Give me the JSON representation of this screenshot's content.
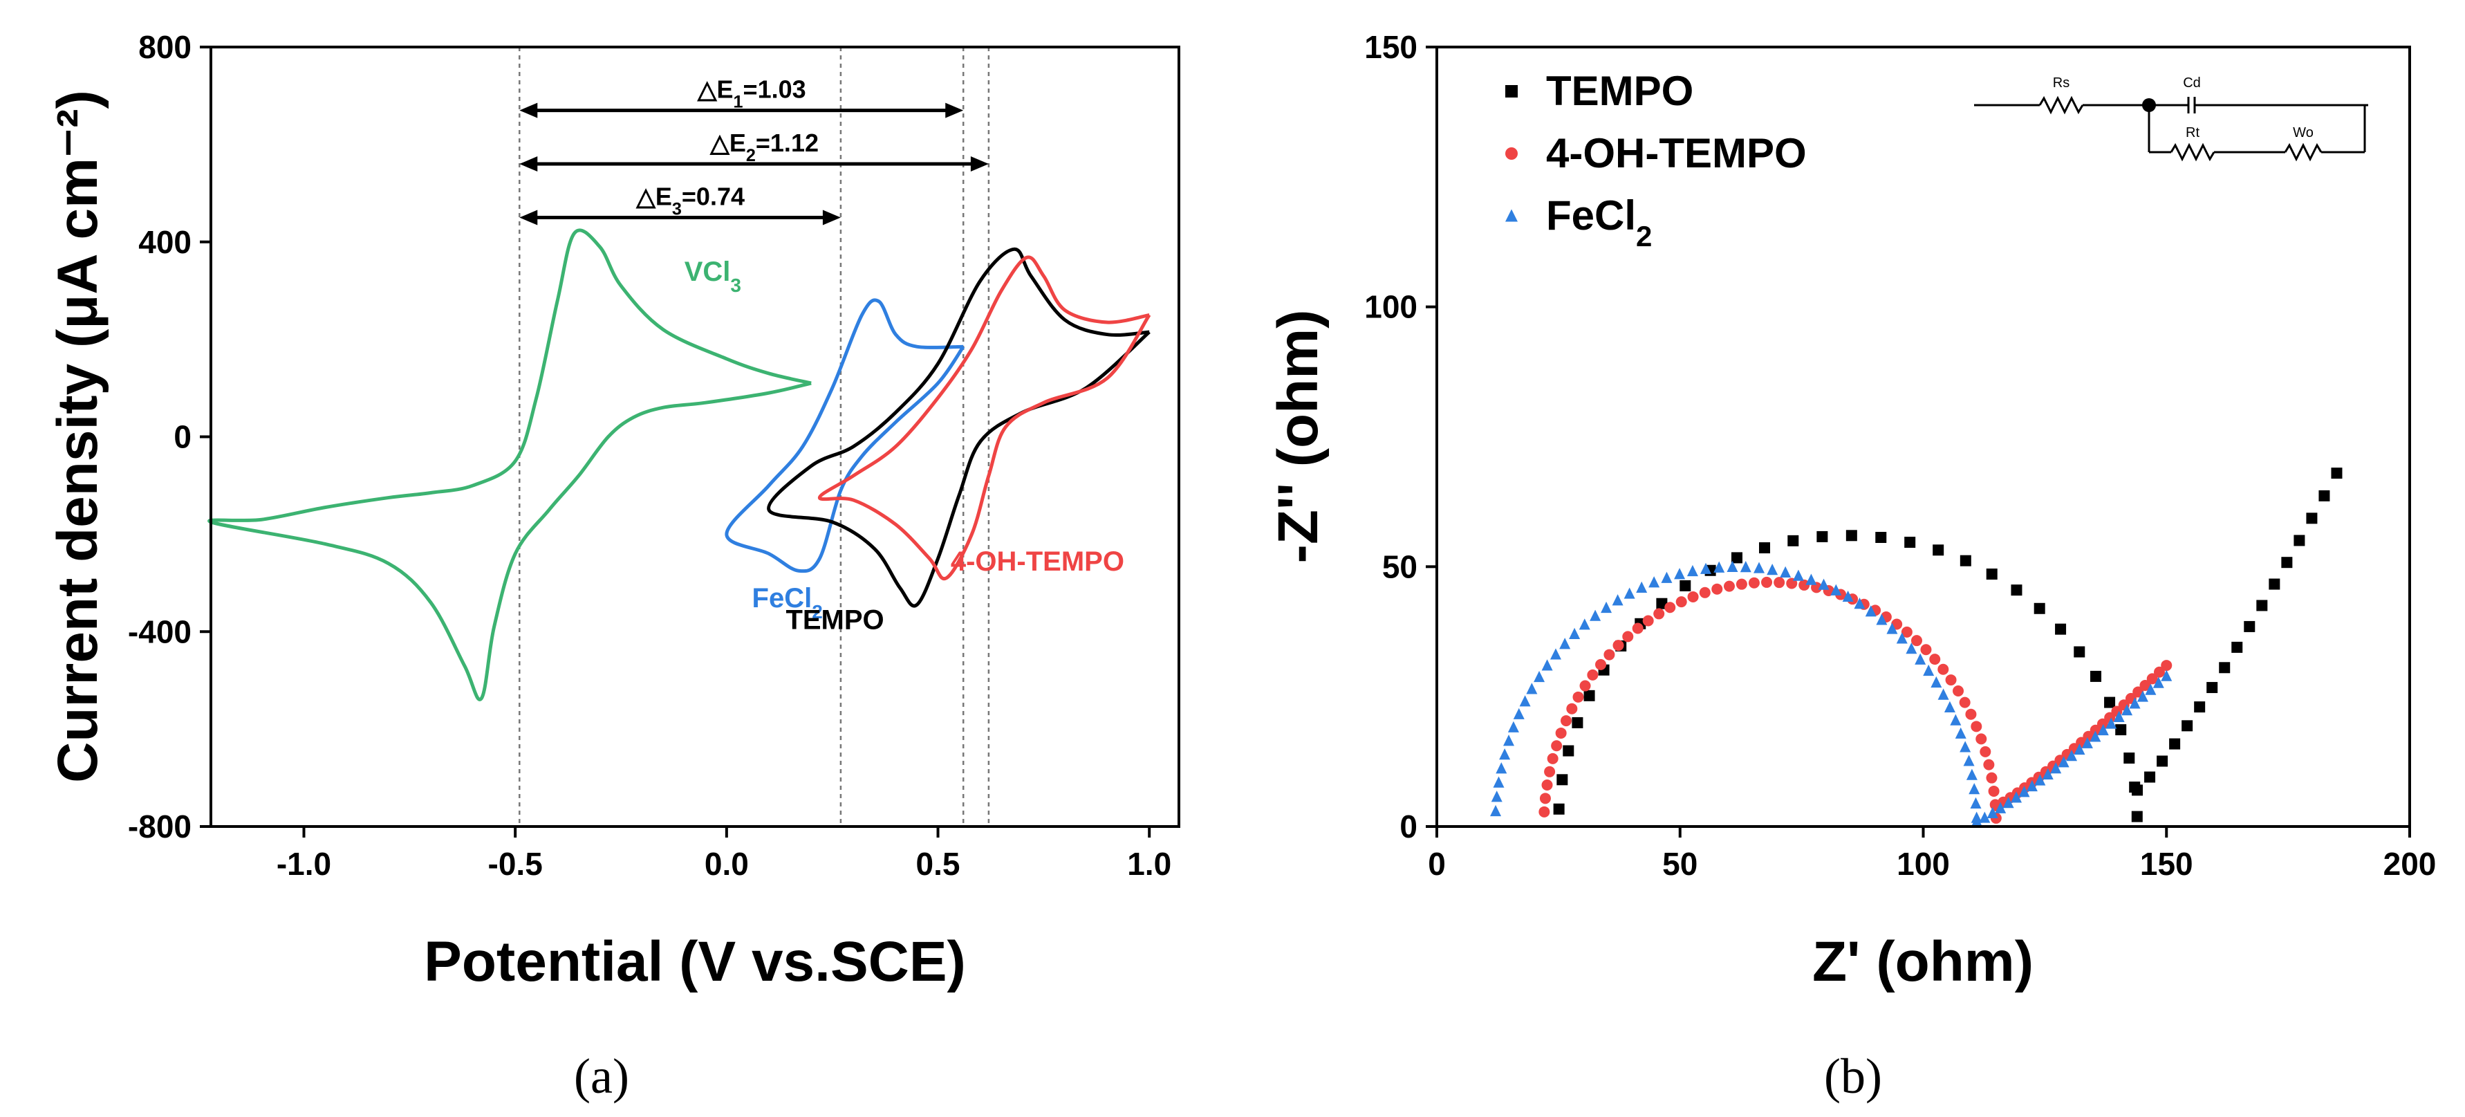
{
  "chart_data": [
    {
      "panel_label": "(a)",
      "type": "line",
      "xlabel": "Potential (V vs.SCE)",
      "ylabel": "Current density (μA cm⁻²)",
      "xlim": [
        -1.22,
        1.07
      ],
      "ylim": [
        -800,
        800
      ],
      "xticks": [
        -1.0,
        -0.5,
        0.0,
        0.5,
        1.0
      ],
      "xtick_labels": [
        "-1.0",
        "-0.5",
        "0.0",
        "0.5",
        "1.0"
      ],
      "yticks": [
        -800,
        -400,
        0,
        400,
        800
      ],
      "ytick_labels": [
        "-800",
        "-400",
        "0",
        "400",
        "800"
      ],
      "vlines": [
        -0.49,
        0.27,
        0.56,
        0.62
      ],
      "annotations": [
        {
          "text": "△E",
          "sub": "1",
          "rest": "=1.03",
          "from": -0.49,
          "to": 0.56,
          "y": 670
        },
        {
          "text": "△E",
          "sub": "2",
          "rest": "=1.12",
          "from": -0.49,
          "to": 0.62,
          "y": 560
        },
        {
          "text": "△E",
          "sub": "3",
          "rest": "=0.74",
          "from": -0.49,
          "to": 0.27,
          "y": 450
        }
      ],
      "series": [
        {
          "name": "VCl3",
          "label_main": "VCl",
          "label_sub": "3",
          "color": "#3cb371",
          "label_pos": [
            -0.1,
            320
          ],
          "points": [
            [
              0.2,
              110
            ],
            [
              0.1,
              90
            ],
            [
              -0.05,
              70
            ],
            [
              -0.15,
              60
            ],
            [
              -0.22,
              40
            ],
            [
              -0.28,
              0
            ],
            [
              -0.35,
              -80
            ],
            [
              -0.42,
              -150
            ],
            [
              -0.5,
              -240
            ],
            [
              -0.55,
              -390
            ],
            [
              -0.58,
              -537
            ],
            [
              -0.62,
              -470
            ],
            [
              -0.7,
              -340
            ],
            [
              -0.8,
              -260
            ],
            [
              -0.95,
              -220
            ],
            [
              -1.22,
              -175
            ],
            [
              -1.1,
              -170
            ],
            [
              -0.95,
              -145
            ],
            [
              -0.8,
              -125
            ],
            [
              -0.7,
              -115
            ],
            [
              -0.6,
              -100
            ],
            [
              -0.5,
              -50
            ],
            [
              -0.45,
              80
            ],
            [
              -0.4,
              280
            ],
            [
              -0.36,
              418
            ],
            [
              -0.3,
              390
            ],
            [
              -0.25,
              310
            ],
            [
              -0.15,
              220
            ],
            [
              0.0,
              160
            ],
            [
              0.1,
              130
            ],
            [
              0.2,
              110
            ]
          ]
        },
        {
          "name": "FeCl2",
          "label_main": "FeCl",
          "label_sub": "2",
          "color": "#2f7fe0",
          "label_pos": [
            0.06,
            -350
          ],
          "points": [
            [
              0.56,
              185
            ],
            [
              0.45,
              185
            ],
            [
              0.4,
              210
            ],
            [
              0.36,
              278
            ],
            [
              0.32,
              250
            ],
            [
              0.25,
              100
            ],
            [
              0.18,
              -20
            ],
            [
              0.1,
              -100
            ],
            [
              0.0,
              -200
            ],
            [
              0.1,
              -240
            ],
            [
              0.17,
              -275
            ],
            [
              0.22,
              -250
            ],
            [
              0.27,
              -110
            ],
            [
              0.32,
              -40
            ],
            [
              0.4,
              30
            ],
            [
              0.5,
              110
            ],
            [
              0.56,
              185
            ]
          ]
        },
        {
          "name": "TEMPO",
          "label_main": "TEMPO",
          "label_sub": "",
          "color": "#000000",
          "label_pos": [
            0.14,
            -395
          ],
          "points": [
            [
              1.0,
              215
            ],
            [
              0.9,
              210
            ],
            [
              0.8,
              240
            ],
            [
              0.72,
              330
            ],
            [
              0.68,
              385
            ],
            [
              0.6,
              320
            ],
            [
              0.5,
              150
            ],
            [
              0.4,
              50
            ],
            [
              0.3,
              -20
            ],
            [
              0.2,
              -60
            ],
            [
              0.1,
              -150
            ],
            [
              0.25,
              -175
            ],
            [
              0.35,
              -230
            ],
            [
              0.41,
              -310
            ],
            [
              0.45,
              -345
            ],
            [
              0.5,
              -250
            ],
            [
              0.55,
              -120
            ],
            [
              0.6,
              -10
            ],
            [
              0.7,
              50
            ],
            [
              0.85,
              100
            ],
            [
              1.0,
              215
            ]
          ]
        },
        {
          "name": "4-OH-TEMPO",
          "label_main": "4-OH-TEMPO",
          "label_sub": "",
          "color": "#ef4444",
          "label_pos": [
            0.53,
            -275
          ],
          "points": [
            [
              1.0,
              250
            ],
            [
              0.9,
              235
            ],
            [
              0.8,
              260
            ],
            [
              0.75,
              330
            ],
            [
              0.71,
              368
            ],
            [
              0.65,
              300
            ],
            [
              0.58,
              180
            ],
            [
              0.5,
              80
            ],
            [
              0.4,
              -20
            ],
            [
              0.3,
              -80
            ],
            [
              0.22,
              -125
            ],
            [
              0.3,
              -130
            ],
            [
              0.4,
              -180
            ],
            [
              0.48,
              -250
            ],
            [
              0.52,
              -290
            ],
            [
              0.58,
              -200
            ],
            [
              0.62,
              -80
            ],
            [
              0.66,
              20
            ],
            [
              0.75,
              70
            ],
            [
              0.9,
              120
            ],
            [
              1.0,
              250
            ]
          ]
        }
      ]
    },
    {
      "panel_label": "(b)",
      "type": "scatter",
      "xlabel": "Z' (ohm)",
      "ylabel": "-Z'' (ohm)",
      "xlim": [
        0,
        200
      ],
      "ylim": [
        0,
        150
      ],
      "xticks": [
        0,
        50,
        100,
        150,
        200
      ],
      "xtick_labels": [
        "0",
        "50",
        "100",
        "150",
        "200"
      ],
      "yticks": [
        0,
        50,
        100,
        150
      ],
      "ytick_labels": [
        "0",
        "50",
        "100",
        "150"
      ],
      "legend_position": "top-left",
      "circuit": {
        "labels": [
          "Rs",
          "Cd",
          "Rt",
          "Wo"
        ]
      },
      "series": [
        {
          "name": "TEMPO",
          "label_main": "TEMPO",
          "label_sub": "",
          "color": "#000000",
          "marker": "square",
          "arc": {
            "start": 25,
            "end": 144,
            "height": 56
          },
          "tail": {
            "from": [
              144,
              7
            ],
            "to": [
              185,
              68
            ],
            "n": 16
          }
        },
        {
          "name": "4-OH-TEMPO",
          "label_main": "4-OH-TEMPO",
          "label_sub": "",
          "color": "#ef4444",
          "marker": "circle",
          "arc": {
            "start": 22,
            "end": 115,
            "height": 47
          },
          "tail": {
            "from": [
              115,
              4
            ],
            "to": [
              150,
              31
            ],
            "n": 24
          }
        },
        {
          "name": "FeCl2",
          "label_main": "FeCl",
          "label_sub": "2",
          "color": "#2f7fe0",
          "marker": "triangle",
          "arc": {
            "start": 12,
            "end": 111,
            "height": 50
          },
          "tail": {
            "from": [
              111,
              1
            ],
            "to": [
              150,
              29
            ],
            "n": 24
          }
        }
      ]
    }
  ]
}
